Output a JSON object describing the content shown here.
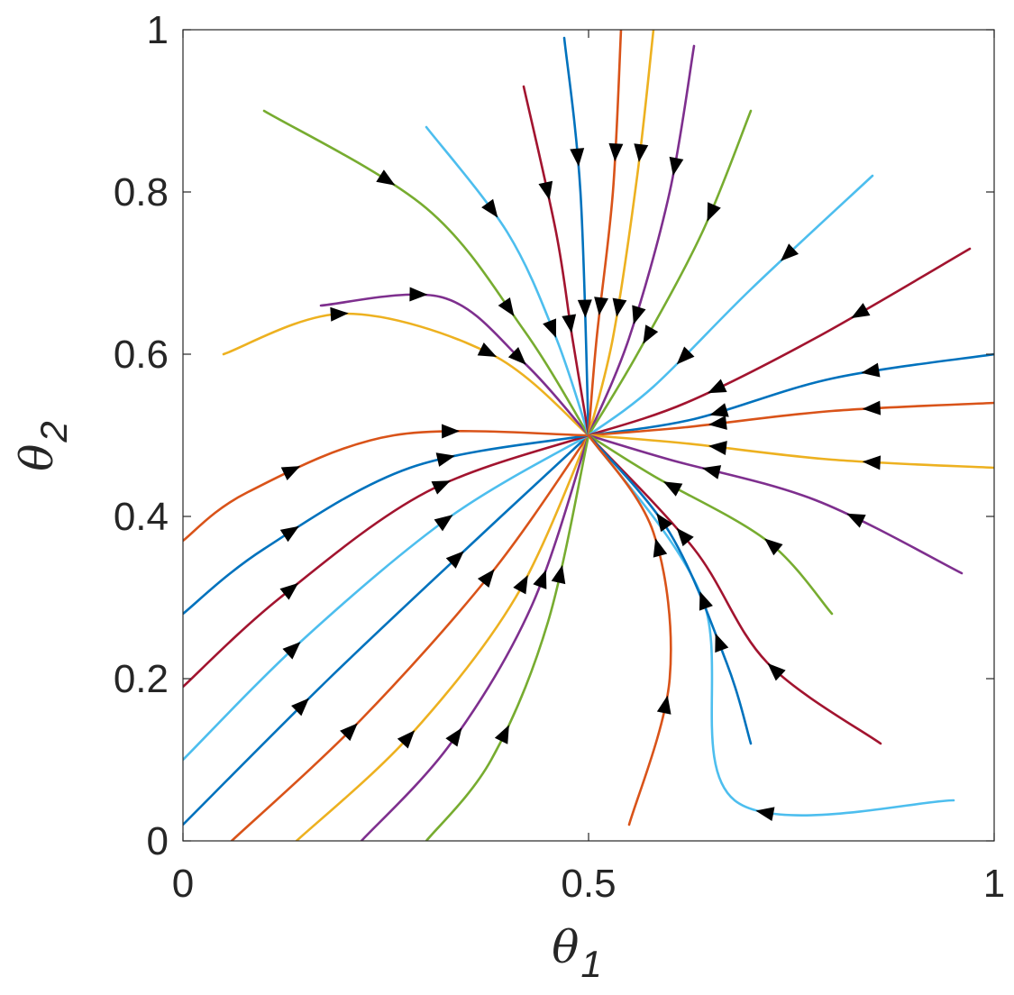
{
  "chart_data": {
    "type": "streamline",
    "xlabel": "θ",
    "xlabel_sub": "1",
    "ylabel": "θ",
    "ylabel_sub": "2",
    "xlim": [
      0,
      1
    ],
    "ylim": [
      0,
      1
    ],
    "xticks": [
      {
        "value": 0,
        "label": "0"
      },
      {
        "value": 0.5,
        "label": "0.5"
      },
      {
        "value": 1,
        "label": "1"
      }
    ],
    "yticks": [
      {
        "value": 0,
        "label": "0"
      },
      {
        "value": 0.2,
        "label": "0.2"
      },
      {
        "value": 0.4,
        "label": "0.4"
      },
      {
        "value": 0.6,
        "label": "0.6"
      },
      {
        "value": 0.8,
        "label": "0.8"
      },
      {
        "value": 1,
        "label": "1"
      }
    ],
    "grid": false,
    "colors": [
      "#0072BD",
      "#D95319",
      "#EDB120",
      "#7E2F8E",
      "#77AC30",
      "#4DBEEE",
      "#A2142F"
    ],
    "arrow_color": "#000000",
    "attractor": [
      0.5,
      0.5
    ],
    "streamlines": [
      [
        [
          0.0,
          0.02
        ],
        [
          0.18,
          0.2
        ],
        [
          0.36,
          0.37
        ],
        [
          0.5,
          0.5
        ]
      ],
      [
        [
          0.06,
          0.0
        ],
        [
          0.22,
          0.15
        ],
        [
          0.38,
          0.33
        ],
        [
          0.5,
          0.5
        ]
      ],
      [
        [
          0.14,
          0.0
        ],
        [
          0.28,
          0.13
        ],
        [
          0.41,
          0.3
        ],
        [
          0.5,
          0.5
        ]
      ],
      [
        [
          0.22,
          0.0
        ],
        [
          0.33,
          0.12
        ],
        [
          0.43,
          0.29
        ],
        [
          0.5,
          0.5
        ]
      ],
      [
        [
          0.3,
          0.0
        ],
        [
          0.38,
          0.1
        ],
        [
          0.45,
          0.27
        ],
        [
          0.5,
          0.5
        ]
      ],
      [
        [
          0.0,
          0.1
        ],
        [
          0.15,
          0.25
        ],
        [
          0.33,
          0.4
        ],
        [
          0.5,
          0.5
        ]
      ],
      [
        [
          0.0,
          0.19
        ],
        [
          0.12,
          0.3
        ],
        [
          0.3,
          0.43
        ],
        [
          0.5,
          0.5
        ]
      ],
      [
        [
          0.0,
          0.28
        ],
        [
          0.1,
          0.36
        ],
        [
          0.28,
          0.46
        ],
        [
          0.5,
          0.5
        ]
      ],
      [
        [
          0.0,
          0.37
        ],
        [
          0.08,
          0.43
        ],
        [
          0.26,
          0.5
        ],
        [
          0.5,
          0.5
        ]
      ],
      [
        [
          0.05,
          0.6
        ],
        [
          0.2,
          0.65
        ],
        [
          0.38,
          0.6
        ],
        [
          0.5,
          0.5
        ]
      ],
      [
        [
          0.17,
          0.66
        ],
        [
          0.32,
          0.67
        ],
        [
          0.42,
          0.59
        ],
        [
          0.5,
          0.5
        ]
      ],
      [
        [
          0.1,
          0.9
        ],
        [
          0.3,
          0.78
        ],
        [
          0.42,
          0.63
        ],
        [
          0.5,
          0.5
        ]
      ],
      [
        [
          0.3,
          0.88
        ],
        [
          0.4,
          0.75
        ],
        [
          0.46,
          0.62
        ],
        [
          0.5,
          0.5
        ]
      ],
      [
        [
          0.42,
          0.93
        ],
        [
          0.46,
          0.75
        ],
        [
          0.48,
          0.62
        ],
        [
          0.5,
          0.5
        ]
      ],
      [
        [
          0.47,
          0.99
        ],
        [
          0.49,
          0.8
        ],
        [
          0.5,
          0.5
        ]
      ],
      [
        [
          0.54,
          1.0
        ],
        [
          0.53,
          0.8
        ],
        [
          0.51,
          0.62
        ],
        [
          0.5,
          0.5
        ]
      ],
      [
        [
          0.58,
          1.0
        ],
        [
          0.56,
          0.82
        ],
        [
          0.53,
          0.62
        ],
        [
          0.5,
          0.5
        ]
      ],
      [
        [
          0.63,
          0.98
        ],
        [
          0.6,
          0.8
        ],
        [
          0.55,
          0.62
        ],
        [
          0.5,
          0.5
        ]
      ],
      [
        [
          0.7,
          0.9
        ],
        [
          0.64,
          0.75
        ],
        [
          0.56,
          0.6
        ],
        [
          0.5,
          0.5
        ]
      ],
      [
        [
          0.85,
          0.82
        ],
        [
          0.7,
          0.68
        ],
        [
          0.58,
          0.56
        ],
        [
          0.5,
          0.5
        ]
      ],
      [
        [
          0.97,
          0.73
        ],
        [
          0.78,
          0.62
        ],
        [
          0.62,
          0.54
        ],
        [
          0.5,
          0.5
        ]
      ],
      [
        [
          1.0,
          0.6
        ],
        [
          0.8,
          0.57
        ],
        [
          0.63,
          0.52
        ],
        [
          0.5,
          0.5
        ]
      ],
      [
        [
          1.0,
          0.54
        ],
        [
          0.8,
          0.53
        ],
        [
          0.62,
          0.51
        ],
        [
          0.5,
          0.5
        ]
      ],
      [
        [
          1.0,
          0.46
        ],
        [
          0.8,
          0.47
        ],
        [
          0.62,
          0.49
        ],
        [
          0.5,
          0.5
        ]
      ],
      [
        [
          0.96,
          0.33
        ],
        [
          0.78,
          0.42
        ],
        [
          0.6,
          0.47
        ],
        [
          0.5,
          0.5
        ]
      ],
      [
        [
          0.8,
          0.28
        ],
        [
          0.72,
          0.37
        ],
        [
          0.58,
          0.45
        ],
        [
          0.5,
          0.5
        ]
      ],
      [
        [
          0.95,
          0.05
        ],
        [
          0.68,
          0.05
        ],
        [
          0.64,
          0.3
        ],
        [
          0.5,
          0.5
        ]
      ],
      [
        [
          0.86,
          0.12
        ],
        [
          0.72,
          0.22
        ],
        [
          0.63,
          0.36
        ],
        [
          0.5,
          0.5
        ]
      ],
      [
        [
          0.7,
          0.12
        ],
        [
          0.67,
          0.22
        ],
        [
          0.6,
          0.38
        ],
        [
          0.5,
          0.5
        ]
      ],
      [
        [
          0.55,
          0.02
        ],
        [
          0.6,
          0.2
        ],
        [
          0.58,
          0.38
        ],
        [
          0.5,
          0.5
        ]
      ]
    ]
  }
}
